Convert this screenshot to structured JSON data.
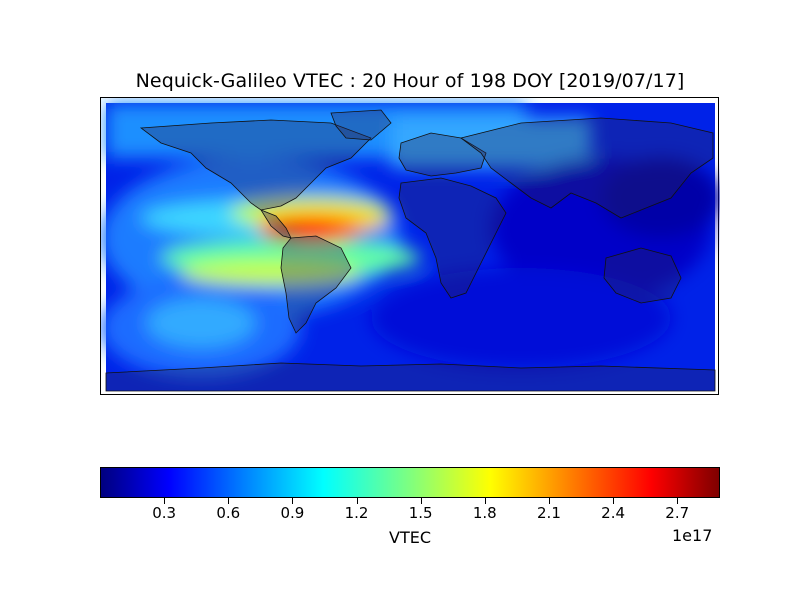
{
  "title": "Nequick-Galileo VTEC : 20 Hour of 198 DOY [2019/07/17]",
  "colorbar": {
    "label": "VTEC",
    "exponent": "1e17",
    "ticks": [
      "0.3",
      "0.6",
      "0.9",
      "1.2",
      "1.5",
      "1.8",
      "2.1",
      "2.4",
      "2.7"
    ],
    "range": [
      0.0,
      2.9
    ],
    "colormap": "jet"
  },
  "map": {
    "projection": "cylindrical",
    "extent_lon": [
      -180,
      180
    ],
    "extent_lat": [
      -90,
      90
    ],
    "highlight": "peak VTEC over Central America / Caribbean"
  }
}
